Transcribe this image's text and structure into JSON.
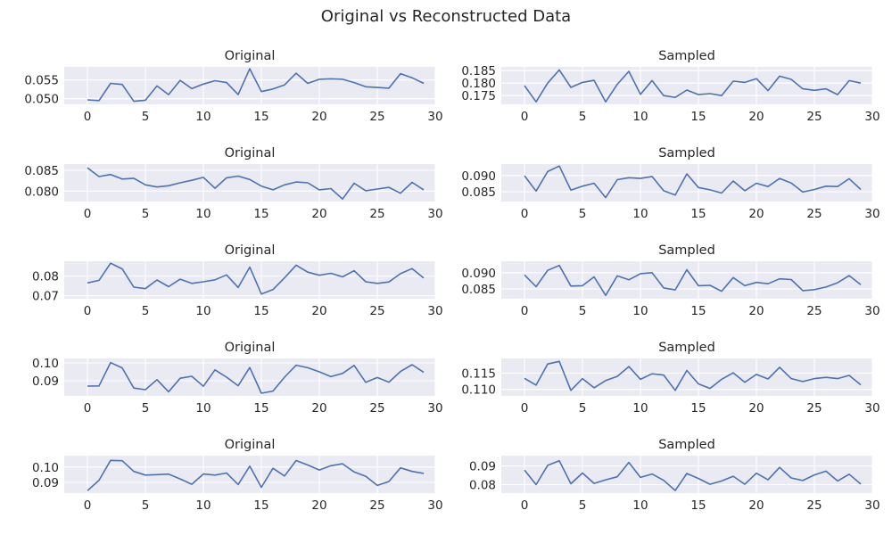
{
  "figure": {
    "title": "Original vs Reconstructed Data"
  },
  "chart_data": [
    {
      "type": "line",
      "title": "Original",
      "xlim": [
        -2,
        30
      ],
      "ylim": [
        0.0485,
        0.0585
      ],
      "xticks": [
        0,
        5,
        10,
        15,
        20,
        25,
        30
      ],
      "yticks": [
        0.05,
        0.055
      ],
      "ytick_labels": [
        "0.050",
        "0.055"
      ],
      "grid": true,
      "x": [
        0,
        1,
        2,
        3,
        4,
        5,
        6,
        7,
        8,
        9,
        10,
        11,
        12,
        13,
        14,
        15,
        16,
        17,
        18,
        19,
        20,
        21,
        22,
        23,
        24,
        25,
        26,
        27,
        28,
        29
      ],
      "values": [
        0.0497,
        0.0495,
        0.0541,
        0.0538,
        0.0493,
        0.0496,
        0.0534,
        0.0511,
        0.0549,
        0.0527,
        0.0539,
        0.0548,
        0.0543,
        0.0511,
        0.058,
        0.0519,
        0.0526,
        0.0537,
        0.0568,
        0.0541,
        0.0552,
        0.0553,
        0.0552,
        0.0543,
        0.0532,
        0.053,
        0.0528,
        0.0567,
        0.0556,
        0.0541
      ]
    },
    {
      "type": "line",
      "title": "Sampled",
      "xlim": [
        -2,
        30
      ],
      "ylim": [
        0.1715,
        0.1865
      ],
      "xticks": [
        0,
        5,
        10,
        15,
        20,
        25,
        30
      ],
      "yticks": [
        0.175,
        0.18,
        0.185
      ],
      "ytick_labels": [
        "0.175",
        "0.180",
        "0.185"
      ],
      "grid": true,
      "x": [
        0,
        1,
        2,
        3,
        4,
        5,
        6,
        7,
        8,
        9,
        10,
        11,
        12,
        13,
        14,
        15,
        16,
        17,
        18,
        19,
        20,
        21,
        22,
        23,
        24,
        25,
        26,
        27,
        28,
        29
      ],
      "values": [
        0.179,
        0.1725,
        0.18,
        0.1853,
        0.1783,
        0.1803,
        0.1811,
        0.1725,
        0.1795,
        0.1847,
        0.1755,
        0.181,
        0.175,
        0.1743,
        0.1772,
        0.1754,
        0.1758,
        0.175,
        0.1808,
        0.1803,
        0.1818,
        0.177,
        0.1828,
        0.1815,
        0.1777,
        0.1771,
        0.1777,
        0.1754,
        0.181,
        0.18
      ]
    },
    {
      "type": "line",
      "title": "Original",
      "xlim": [
        -2,
        30
      ],
      "ylim": [
        0.0775,
        0.0865
      ],
      "xticks": [
        0,
        5,
        10,
        15,
        20,
        25,
        30
      ],
      "yticks": [
        0.08,
        0.085
      ],
      "ytick_labels": [
        "0.080",
        "0.085"
      ],
      "grid": true,
      "x": [
        0,
        1,
        2,
        3,
        4,
        5,
        6,
        7,
        8,
        9,
        10,
        11,
        12,
        13,
        14,
        15,
        16,
        17,
        18,
        19,
        20,
        21,
        22,
        23,
        24,
        25,
        26,
        27,
        28,
        29
      ],
      "values": [
        0.0856,
        0.0835,
        0.084,
        0.0829,
        0.0831,
        0.0815,
        0.081,
        0.0813,
        0.082,
        0.0826,
        0.0833,
        0.0807,
        0.0832,
        0.0836,
        0.0828,
        0.0812,
        0.0803,
        0.0815,
        0.0822,
        0.082,
        0.0803,
        0.0806,
        0.0781,
        0.0819,
        0.0801,
        0.0805,
        0.0809,
        0.0795,
        0.0821,
        0.0803
      ]
    },
    {
      "type": "line",
      "title": "Sampled",
      "xlim": [
        -2,
        30
      ],
      "ylim": [
        0.082,
        0.0935
      ],
      "xticks": [
        0,
        5,
        10,
        15,
        20,
        25,
        30
      ],
      "yticks": [
        0.085,
        0.09
      ],
      "ytick_labels": [
        "0.085",
        "0.090"
      ],
      "grid": true,
      "x": [
        0,
        1,
        2,
        3,
        4,
        5,
        6,
        7,
        8,
        9,
        10,
        11,
        12,
        13,
        14,
        15,
        16,
        17,
        18,
        19,
        20,
        21,
        22,
        23,
        24,
        25,
        26,
        27,
        28,
        29
      ],
      "values": [
        0.0899,
        0.0852,
        0.0912,
        0.0929,
        0.0855,
        0.0867,
        0.0876,
        0.0832,
        0.0887,
        0.0893,
        0.0891,
        0.0897,
        0.0853,
        0.084,
        0.0905,
        0.0863,
        0.0856,
        0.0846,
        0.0883,
        0.0853,
        0.0876,
        0.0866,
        0.0891,
        0.0877,
        0.0849,
        0.0857,
        0.0867,
        0.0866,
        0.089,
        0.0857
      ]
    },
    {
      "type": "line",
      "title": "Original",
      "xlim": [
        -2,
        30
      ],
      "ylim": [
        0.0685,
        0.0875
      ],
      "xticks": [
        0,
        5,
        10,
        15,
        20,
        25,
        30
      ],
      "yticks": [
        0.07,
        0.08
      ],
      "ytick_labels": [
        "0.07",
        "0.08"
      ],
      "grid": true,
      "x": [
        0,
        1,
        2,
        3,
        4,
        5,
        6,
        7,
        8,
        9,
        10,
        11,
        12,
        13,
        14,
        15,
        16,
        17,
        18,
        19,
        20,
        21,
        22,
        23,
        24,
        25,
        26,
        27,
        28,
        29
      ],
      "values": [
        0.0765,
        0.0778,
        0.0865,
        0.0836,
        0.0744,
        0.0736,
        0.078,
        0.0746,
        0.0784,
        0.0763,
        0.0771,
        0.0781,
        0.0806,
        0.0742,
        0.0845,
        0.0709,
        0.0731,
        0.0791,
        0.0855,
        0.082,
        0.0804,
        0.0814,
        0.0796,
        0.0827,
        0.0771,
        0.0763,
        0.077,
        0.0812,
        0.0838,
        0.079
      ]
    },
    {
      "type": "line",
      "title": "Sampled",
      "xlim": [
        -2,
        30
      ],
      "ylim": [
        0.082,
        0.0935
      ],
      "xticks": [
        0,
        5,
        10,
        15,
        20,
        25,
        30
      ],
      "yticks": [
        0.085,
        0.09
      ],
      "ytick_labels": [
        "0.085",
        "0.090"
      ],
      "grid": true,
      "x": [
        0,
        1,
        2,
        3,
        4,
        5,
        6,
        7,
        8,
        9,
        10,
        11,
        12,
        13,
        14,
        15,
        16,
        17,
        18,
        19,
        20,
        21,
        22,
        23,
        24,
        25,
        26,
        27,
        28,
        29
      ],
      "values": [
        0.0893,
        0.0857,
        0.0907,
        0.0922,
        0.0859,
        0.086,
        0.0887,
        0.083,
        0.089,
        0.0878,
        0.0897,
        0.09,
        0.0853,
        0.0847,
        0.0909,
        0.086,
        0.0861,
        0.0843,
        0.0885,
        0.086,
        0.087,
        0.0866,
        0.0881,
        0.0879,
        0.0845,
        0.0848,
        0.0856,
        0.0869,
        0.0891,
        0.0863
      ]
    },
    {
      "type": "line",
      "title": "Original",
      "xlim": [
        -2,
        30
      ],
      "ylim": [
        0.0815,
        0.1025
      ],
      "xticks": [
        0,
        5,
        10,
        15,
        20,
        25,
        30
      ],
      "yticks": [
        0.09,
        0.1
      ],
      "ytick_labels": [
        "0.09",
        "0.10"
      ],
      "grid": true,
      "x": [
        0,
        1,
        2,
        3,
        4,
        5,
        6,
        7,
        8,
        9,
        10,
        11,
        12,
        13,
        14,
        15,
        16,
        17,
        18,
        19,
        20,
        21,
        22,
        23,
        24,
        25,
        26,
        27,
        28,
        29
      ],
      "values": [
        0.087,
        0.0871,
        0.1002,
        0.0972,
        0.0859,
        0.085,
        0.0906,
        0.0838,
        0.0914,
        0.0925,
        0.0869,
        0.0961,
        0.092,
        0.0872,
        0.0974,
        0.083,
        0.0842,
        0.092,
        0.0987,
        0.0973,
        0.095,
        0.0923,
        0.0941,
        0.0986,
        0.0891,
        0.0918,
        0.0892,
        0.0952,
        0.099,
        0.0947
      ]
    },
    {
      "type": "line",
      "title": "Sampled",
      "xlim": [
        -2,
        30
      ],
      "ylim": [
        0.108,
        0.1195
      ],
      "xticks": [
        0,
        5,
        10,
        15,
        20,
        25,
        30
      ],
      "yticks": [
        0.11,
        0.115
      ],
      "ytick_labels": [
        "0.110",
        "0.115"
      ],
      "grid": true,
      "x": [
        0,
        1,
        2,
        3,
        4,
        5,
        6,
        7,
        8,
        9,
        10,
        11,
        12,
        13,
        14,
        15,
        16,
        17,
        18,
        19,
        20,
        21,
        22,
        23,
        24,
        25,
        26,
        27,
        28,
        29
      ],
      "values": [
        0.1134,
        0.1113,
        0.1178,
        0.1186,
        0.1097,
        0.1133,
        0.1105,
        0.1127,
        0.114,
        0.117,
        0.1131,
        0.1148,
        0.1144,
        0.1097,
        0.1158,
        0.1117,
        0.1103,
        0.1131,
        0.1151,
        0.1122,
        0.1146,
        0.1132,
        0.1168,
        0.1133,
        0.1124,
        0.1133,
        0.1137,
        0.1133,
        0.1143,
        0.1114
      ]
    },
    {
      "type": "line",
      "title": "Original",
      "xlim": [
        -2,
        30
      ],
      "ylim": [
        0.083,
        0.1075
      ],
      "xticks": [
        0,
        5,
        10,
        15,
        20,
        25,
        30
      ],
      "yticks": [
        0.09,
        0.1
      ],
      "ytick_labels": [
        "0.09",
        "0.10"
      ],
      "grid": true,
      "x": [
        0,
        1,
        2,
        3,
        4,
        5,
        6,
        7,
        8,
        9,
        10,
        11,
        12,
        13,
        14,
        15,
        16,
        17,
        18,
        19,
        20,
        21,
        22,
        23,
        24,
        25,
        26,
        27,
        28,
        29
      ],
      "values": [
        0.0846,
        0.0914,
        0.1044,
        0.1042,
        0.0972,
        0.0948,
        0.0951,
        0.0954,
        0.0923,
        0.0888,
        0.0955,
        0.0948,
        0.0961,
        0.0886,
        0.1006,
        0.0868,
        0.0992,
        0.0942,
        0.1043,
        0.1014,
        0.0981,
        0.1009,
        0.1022,
        0.0968,
        0.094,
        0.088,
        0.0906,
        0.0995,
        0.0972,
        0.0959
      ]
    },
    {
      "type": "line",
      "title": "Sampled",
      "xlim": [
        -2,
        30
      ],
      "ylim": [
        0.0755,
        0.0955
      ],
      "xticks": [
        0,
        5,
        10,
        15,
        20,
        25,
        30
      ],
      "yticks": [
        0.08,
        0.09
      ],
      "ytick_labels": [
        "0.08",
        "0.09"
      ],
      "grid": true,
      "x": [
        0,
        1,
        2,
        3,
        4,
        5,
        6,
        7,
        8,
        9,
        10,
        11,
        12,
        13,
        14,
        15,
        16,
        17,
        18,
        19,
        20,
        21,
        22,
        23,
        24,
        25,
        26,
        27,
        28,
        29
      ],
      "values": [
        0.0878,
        0.08,
        0.0903,
        0.0928,
        0.0805,
        0.0862,
        0.0807,
        0.0826,
        0.0842,
        0.0919,
        0.0839,
        0.0857,
        0.0823,
        0.0769,
        0.086,
        0.0833,
        0.0802,
        0.082,
        0.0845,
        0.0802,
        0.0861,
        0.0826,
        0.0892,
        0.0836,
        0.0822,
        0.0852,
        0.0872,
        0.082,
        0.0856,
        0.0803
      ]
    }
  ]
}
